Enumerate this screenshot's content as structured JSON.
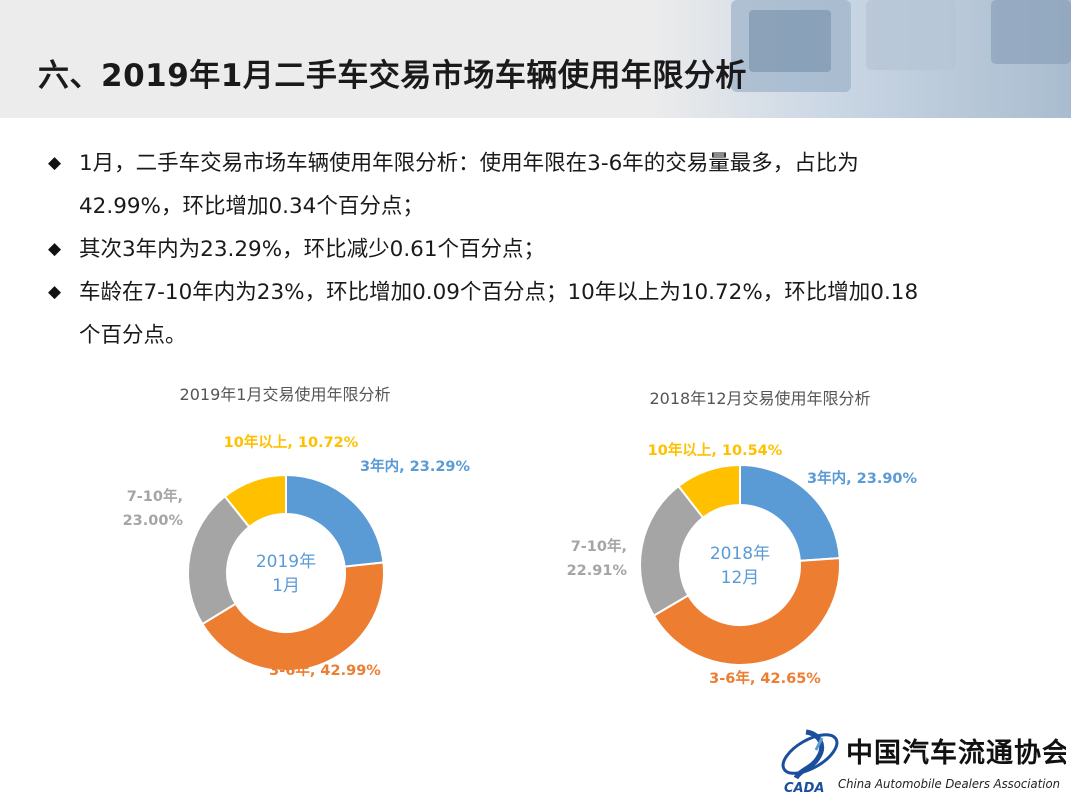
{
  "page": {
    "title": "六、2019年1月二手车交易市场车辆使用年限分析"
  },
  "bullets": [
    {
      "lines": [
        "1月，二手车交易市场车辆使用年限分析：使用年限在3-6年的交易量最多，占比为",
        "42.99%，环比增加0.34个百分点；"
      ]
    },
    {
      "lines": [
        "其次3年内为23.29%，环比减少0.61个百分点；"
      ]
    },
    {
      "lines": [
        "车龄在7-10年内为23%，环比增加0.09个百分点；10年以上为10.72%，环比增加0.18",
        "个百分点。"
      ]
    }
  ],
  "chart_data": [
    {
      "type": "pie",
      "title": "2019年1月交易使用年限分析",
      "center_label": [
        "2019年",
        "1月"
      ],
      "categories": [
        "3年内",
        "3-6年",
        "7-10年",
        "10年以上"
      ],
      "values": [
        23.29,
        42.99,
        23.0,
        10.72
      ],
      "data_labels": [
        [
          "3年内, 23.29%"
        ],
        [
          "3-6年, 42.99%"
        ],
        [
          "7-10年,",
          "23.00%"
        ],
        [
          "10年以上, 10.72%"
        ]
      ],
      "colors": [
        "#5b9bd5",
        "#ed7d31",
        "#a5a5a5",
        "#ffc000"
      ]
    },
    {
      "type": "pie",
      "title": "2018年12月交易使用年限分析",
      "center_label": [
        "2018年",
        "12月"
      ],
      "categories": [
        "3年内",
        "3-6年",
        "7-10年",
        "10年以上"
      ],
      "values": [
        23.9,
        42.65,
        22.91,
        10.54
      ],
      "data_labels": [
        [
          "3年内, 23.90%"
        ],
        [
          "3-6年, 42.65%"
        ],
        [
          "7-10年,",
          "22.91%"
        ],
        [
          "10年以上, 10.54%"
        ]
      ],
      "colors": [
        "#5b9bd5",
        "#ed7d31",
        "#a5a5a5",
        "#ffc000"
      ]
    }
  ],
  "logo": {
    "cn_name": "中国汽车流通协会",
    "en_name": "China Automobile Dealers Association",
    "abbr": "CADA"
  }
}
